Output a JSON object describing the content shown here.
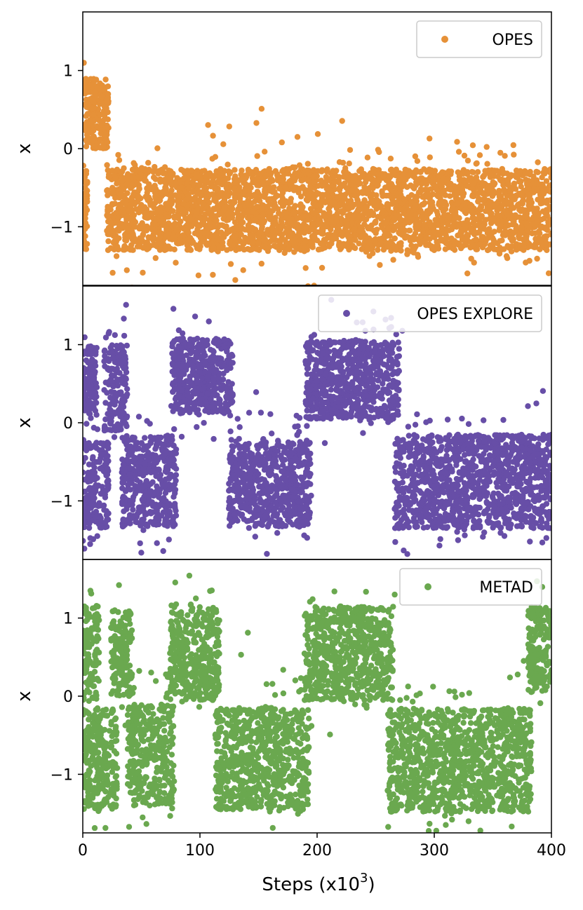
{
  "chart_data": {
    "type": "scatter",
    "layout": "three vertically stacked panels sharing the x axis",
    "xlim": [
      0,
      400
    ],
    "ylim": [
      -1.75,
      1.75
    ],
    "x_ticks": [
      "0",
      "100",
      "200",
      "300",
      "400"
    ],
    "y_ticks": [
      "−1",
      "0",
      "1"
    ],
    "xlabel": {
      "main": "Steps (x10",
      "sup": "3",
      "tail": ")"
    },
    "grid": false,
    "legend_placement": "top-right",
    "panels": [
      {
        "ylabel": "x",
        "series_name": "OPES",
        "color": "#E69138",
        "segments": [
          {
            "x_start": 0,
            "x_end": 22,
            "y_center": 0.45,
            "y_halfwidth": 0.45
          },
          {
            "x_start": 0,
            "x_end": 4,
            "y_center": -0.75,
            "y_halfwidth": 0.55
          },
          {
            "x_start": 20,
            "x_end": 400,
            "y_center": -0.78,
            "y_halfwidth": 0.52
          }
        ]
      },
      {
        "ylabel": "x",
        "series_name": "OPES EXPLORE",
        "color": "#674EA7",
        "segments": [
          {
            "x_start": 0,
            "x_end": 12,
            "y_center": 0.55,
            "y_halfwidth": 0.45
          },
          {
            "x_start": 0,
            "x_end": 22,
            "y_center": -0.8,
            "y_halfwidth": 0.55
          },
          {
            "x_start": 18,
            "x_end": 38,
            "y_center": 0.45,
            "y_halfwidth": 0.55
          },
          {
            "x_start": 33,
            "x_end": 80,
            "y_center": -0.75,
            "y_halfwidth": 0.58
          },
          {
            "x_start": 76,
            "x_end": 128,
            "y_center": 0.6,
            "y_halfwidth": 0.48
          },
          {
            "x_start": 124,
            "x_end": 195,
            "y_center": -0.78,
            "y_halfwidth": 0.55
          },
          {
            "x_start": 190,
            "x_end": 270,
            "y_center": 0.55,
            "y_halfwidth": 0.5
          },
          {
            "x_start": 266,
            "x_end": 400,
            "y_center": -0.75,
            "y_halfwidth": 0.6
          }
        ]
      },
      {
        "ylabel": "x",
        "series_name": "METAD",
        "color": "#6AA84F",
        "segments": [
          {
            "x_start": 0,
            "x_end": 14,
            "y_center": 0.55,
            "y_halfwidth": 0.6
          },
          {
            "x_start": 0,
            "x_end": 30,
            "y_center": -0.8,
            "y_halfwidth": 0.65
          },
          {
            "x_start": 24,
            "x_end": 42,
            "y_center": 0.55,
            "y_halfwidth": 0.55
          },
          {
            "x_start": 38,
            "x_end": 78,
            "y_center": -0.75,
            "y_halfwidth": 0.65
          },
          {
            "x_start": 74,
            "x_end": 117,
            "y_center": 0.55,
            "y_halfwidth": 0.6
          },
          {
            "x_start": 113,
            "x_end": 193,
            "y_center": -0.8,
            "y_halfwidth": 0.65
          },
          {
            "x_start": 189,
            "x_end": 265,
            "y_center": 0.55,
            "y_halfwidth": 0.6
          },
          {
            "x_start": 260,
            "x_end": 383,
            "y_center": -0.82,
            "y_halfwidth": 0.66
          },
          {
            "x_start": 380,
            "x_end": 400,
            "y_center": 0.6,
            "y_halfwidth": 0.55
          }
        ]
      }
    ]
  }
}
